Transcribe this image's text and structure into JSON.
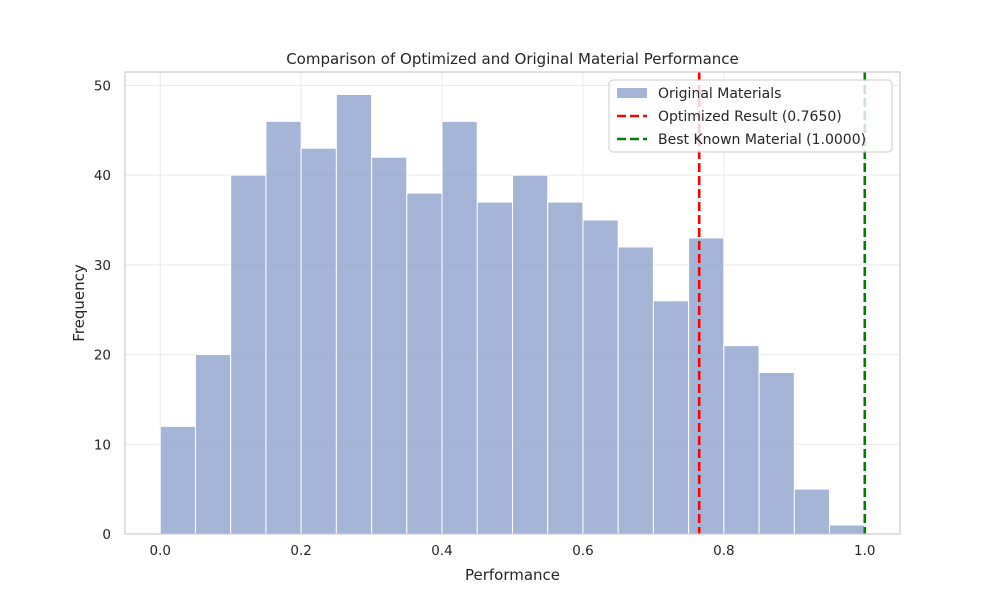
{
  "chart_data": {
    "type": "bar",
    "title": "Comparison of Optimized and Original Material Performance",
    "xlabel": "Performance",
    "ylabel": "Frequency",
    "xlim": [
      -0.05,
      1.05
    ],
    "ylim": [
      0,
      51.5
    ],
    "xticks": [
      "0.0",
      "0.2",
      "0.4",
      "0.6",
      "0.8",
      "1.0"
    ],
    "yticks": [
      "0",
      "10",
      "20",
      "30",
      "40",
      "50"
    ],
    "grid": true,
    "legend_position": "top-right",
    "bins": {
      "edges": [
        0.0,
        0.05,
        0.1,
        0.15,
        0.2,
        0.25,
        0.3,
        0.35,
        0.4,
        0.45,
        0.5,
        0.55,
        0.6,
        0.65,
        0.7,
        0.75,
        0.8,
        0.85,
        0.9,
        0.95,
        1.0
      ],
      "counts": [
        12,
        20,
        40,
        46,
        43,
        49,
        42,
        38,
        46,
        37,
        40,
        37,
        35,
        32,
        26,
        33,
        21,
        18,
        5,
        1
      ]
    },
    "series": [
      {
        "name": "Original Materials",
        "kind": "histogram",
        "color": "#8da3cd"
      },
      {
        "name": "Optimized Result (0.7650)",
        "kind": "vline",
        "x": 0.765,
        "color": "#ff0000"
      },
      {
        "name": "Best Known Material (1.0000)",
        "kind": "vline",
        "x": 1.0,
        "color": "#008000"
      }
    ]
  }
}
